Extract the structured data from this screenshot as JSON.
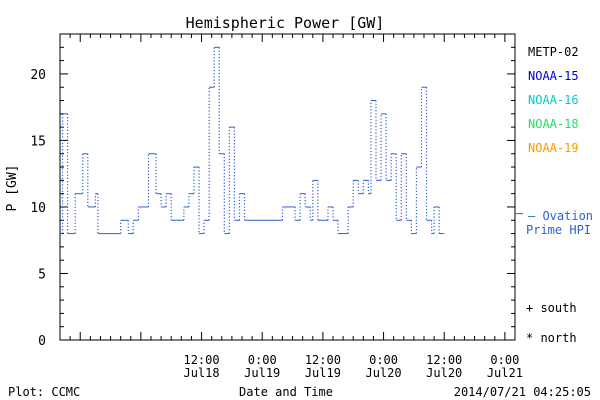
{
  "chart_data": {
    "type": "line",
    "title": "Hemispheric Power [GW]",
    "ylabel": "P [GW]",
    "xlabel": "Date and Time",
    "ylim": [
      0,
      23
    ],
    "yticks": [
      0,
      5,
      10,
      15,
      20
    ],
    "xlim": [
      "2014-07-17 08:00",
      "2014-07-21 02:00"
    ],
    "xticks": [
      {
        "time": "2014-07-18 12:00",
        "line1": "12:00",
        "line2": "Jul18"
      },
      {
        "time": "2014-07-19 00:00",
        "line1": "0:00",
        "line2": "Jul19"
      },
      {
        "time": "2014-07-19 12:00",
        "line1": "12:00",
        "line2": "Jul19"
      },
      {
        "time": "2014-07-20 00:00",
        "line1": "0:00",
        "line2": "Jul20"
      },
      {
        "time": "2014-07-20 12:00",
        "line1": "12:00",
        "line2": "Jul20"
      },
      {
        "time": "2014-07-21 00:00",
        "line1": "0:00",
        "line2": "Jul21"
      }
    ],
    "series": [
      {
        "name": "Ovation Prime HPI",
        "color": "#2e5fd0",
        "style": "step, dotted risers",
        "values": [
          [
            "2014-07-17 08:00",
            8
          ],
          [
            "2014-07-17 08:30",
            17
          ],
          [
            "2014-07-17 09:30",
            8
          ],
          [
            "2014-07-17 11:00",
            11
          ],
          [
            "2014-07-17 12:30",
            14
          ],
          [
            "2014-07-17 13:30",
            10
          ],
          [
            "2014-07-17 15:00",
            11
          ],
          [
            "2014-07-17 15:30",
            8
          ],
          [
            "2014-07-17 20:00",
            9
          ],
          [
            "2014-07-17 21:30",
            8
          ],
          [
            "2014-07-17 22:30",
            9
          ],
          [
            "2014-07-17 23:30",
            10
          ],
          [
            "2014-07-18 01:30",
            14
          ],
          [
            "2014-07-18 03:00",
            11
          ],
          [
            "2014-07-18 04:00",
            10
          ],
          [
            "2014-07-18 05:00",
            11
          ],
          [
            "2014-07-18 06:00",
            9
          ],
          [
            "2014-07-18 08:30",
            10
          ],
          [
            "2014-07-18 09:30",
            11
          ],
          [
            "2014-07-18 10:30",
            13
          ],
          [
            "2014-07-18 11:30",
            8
          ],
          [
            "2014-07-18 12:30",
            9
          ],
          [
            "2014-07-18 13:30",
            19
          ],
          [
            "2014-07-18 14:30",
            22
          ],
          [
            "2014-07-18 15:30",
            14
          ],
          [
            "2014-07-18 16:30",
            8
          ],
          [
            "2014-07-18 17:30",
            16
          ],
          [
            "2014-07-18 18:30",
            9
          ],
          [
            "2014-07-18 19:30",
            11
          ],
          [
            "2014-07-18 20:30",
            9
          ],
          [
            "2014-07-19 04:00",
            10
          ],
          [
            "2014-07-19 06:30",
            9
          ],
          [
            "2014-07-19 07:30",
            11
          ],
          [
            "2014-07-19 08:30",
            10
          ],
          [
            "2014-07-19 09:30",
            9
          ],
          [
            "2014-07-19 10:00",
            12
          ],
          [
            "2014-07-19 11:00",
            9
          ],
          [
            "2014-07-19 13:00",
            10
          ],
          [
            "2014-07-19 14:00",
            9
          ],
          [
            "2014-07-19 15:00",
            8
          ],
          [
            "2014-07-19 17:00",
            10
          ],
          [
            "2014-07-19 18:00",
            12
          ],
          [
            "2014-07-19 19:00",
            11
          ],
          [
            "2014-07-19 20:00",
            12
          ],
          [
            "2014-07-19 21:00",
            11
          ],
          [
            "2014-07-19 21:30",
            18
          ],
          [
            "2014-07-19 22:30",
            12
          ],
          [
            "2014-07-19 23:30",
            17
          ],
          [
            "2014-07-20 00:30",
            12
          ],
          [
            "2014-07-20 01:30",
            14
          ],
          [
            "2014-07-20 02:30",
            9
          ],
          [
            "2014-07-20 03:30",
            14
          ],
          [
            "2014-07-20 04:30",
            9
          ],
          [
            "2014-07-20 05:30",
            8
          ],
          [
            "2014-07-20 06:30",
            13
          ],
          [
            "2014-07-20 07:30",
            19
          ],
          [
            "2014-07-20 08:30",
            9
          ],
          [
            "2014-07-20 09:30",
            8
          ],
          [
            "2014-07-20 10:00",
            10
          ],
          [
            "2014-07-20 11:00",
            8
          ],
          [
            "2014-07-20 12:00",
            8
          ]
        ]
      }
    ],
    "satellites": [
      {
        "name": "METP-02",
        "color": "#000000"
      },
      {
        "name": "NOAA-15",
        "color": "#0000cc"
      },
      {
        "name": "NOAA-16",
        "color": "#00cccc"
      },
      {
        "name": "NOAA-18",
        "color": "#22dd66"
      },
      {
        "name": "NOAA-19",
        "color": "#ff9900"
      }
    ],
    "legend": {
      "line1": "— Ovation",
      "line2": "Prime HPI",
      "position": "right"
    },
    "markers": [
      {
        "symbol": "+",
        "label": "south"
      },
      {
        "symbol": "*",
        "label": "north"
      }
    ],
    "grid": false
  },
  "footer": {
    "left": "Plot: CCMC",
    "center": "Date and Time",
    "right": "2014/07/21 04:25:05"
  }
}
